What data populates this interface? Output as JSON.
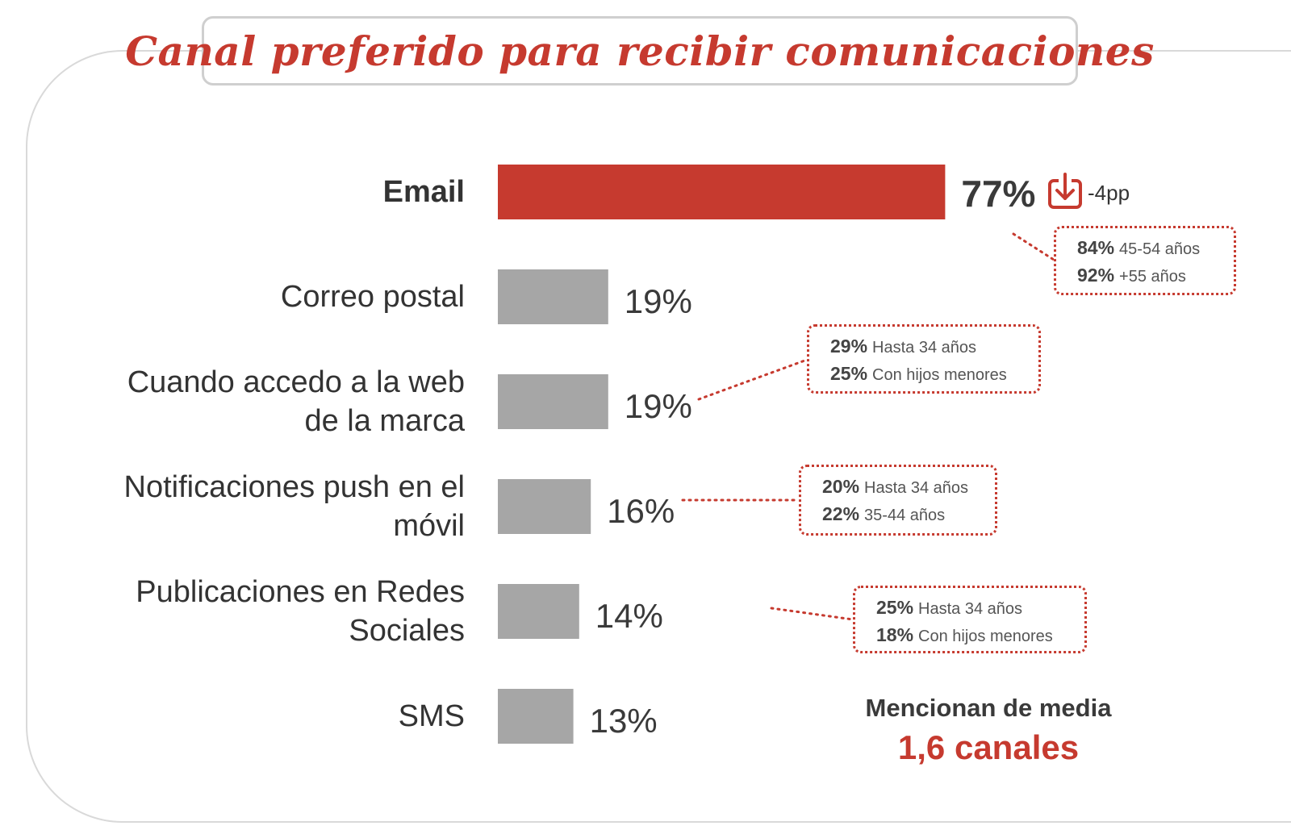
{
  "title": "Canal preferido para recibir comunicaciones",
  "colors": {
    "accent": "#c63a2f",
    "bar_default": "#a6a6a6",
    "frame": "#d9d9d9"
  },
  "chart_data": {
    "type": "bar",
    "orientation": "horizontal",
    "categories": [
      "Email",
      "Correo postal",
      "Cuando accedo a la web\nde la marca",
      "Notificaciones push en el\nmóvil",
      "Publicaciones en Redes\nSociales",
      "SMS"
    ],
    "values": [
      77,
      19,
      19,
      16,
      14,
      13
    ],
    "value_labels": [
      "77%",
      "19%",
      "19%",
      "16%",
      "14%",
      "13%"
    ],
    "highlight_index": 0,
    "xlim": [
      0,
      100
    ],
    "grid": false,
    "legend": "none",
    "annotations": {
      "email_change": "-4pp"
    },
    "breakdowns": [
      {
        "category_index": 0,
        "items": [
          {
            "pct": "84%",
            "label": "45-54 años"
          },
          {
            "pct": "92%",
            "label": "+55 años"
          }
        ]
      },
      {
        "category_index": 2,
        "items": [
          {
            "pct": "29%",
            "label": "Hasta 34 años"
          },
          {
            "pct": "25%",
            "label": "Con hijos menores"
          }
        ]
      },
      {
        "category_index": 3,
        "items": [
          {
            "pct": "20%",
            "label": "Hasta 34 años"
          },
          {
            "pct": "22%",
            "label": "35-44 años"
          }
        ]
      },
      {
        "category_index": 4,
        "items": [
          {
            "pct": "25%",
            "label": "Hasta 34 años"
          },
          {
            "pct": "18%",
            "label": "Con hijos menores"
          }
        ]
      }
    ]
  },
  "summary": {
    "line1": "Mencionan de media",
    "line2": "1,6 canales"
  }
}
